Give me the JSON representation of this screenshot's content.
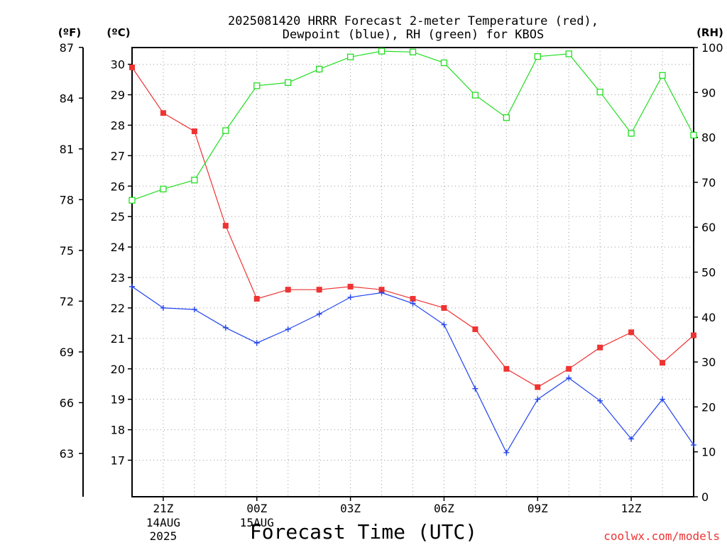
{
  "chart_data": {
    "type": "line",
    "title_line1": "2025081420 HRRR Forecast 2-meter Temperature (red),",
    "title_line2": "Dewpoint (blue), RH (green) for KBOS",
    "xlabel": "Forecast Time (UTC)",
    "credit": "coolwx.com/models",
    "unit_f": "(ºF)",
    "unit_c": "(ºC)",
    "unit_rh": "(RH)",
    "x_hours": [
      20,
      21,
      22,
      23,
      24,
      25,
      26,
      27,
      28,
      29,
      30,
      31,
      32,
      33,
      34,
      35,
      36,
      37,
      38
    ],
    "x_ticks": [
      {
        "hour": 21,
        "label": "21Z",
        "sub1": "14AUG",
        "sub2": "2025"
      },
      {
        "hour": 24,
        "label": "00Z",
        "sub1": "15AUG",
        "sub2": ""
      },
      {
        "hour": 27,
        "label": "03Z",
        "sub1": "",
        "sub2": ""
      },
      {
        "hour": 30,
        "label": "06Z",
        "sub1": "",
        "sub2": ""
      },
      {
        "hour": 33,
        "label": "09Z",
        "sub1": "",
        "sub2": ""
      },
      {
        "hour": 36,
        "label": "12Z",
        "sub1": "",
        "sub2": ""
      }
    ],
    "xlim": [
      20,
      38
    ],
    "ylim_c": [
      15.8,
      30.55
    ],
    "ylim_rh": [
      0,
      100
    ],
    "ticks_c": [
      17,
      18,
      19,
      20,
      21,
      22,
      23,
      24,
      25,
      26,
      27,
      28,
      29,
      30
    ],
    "ticks_f": [
      63,
      66,
      69,
      72,
      75,
      78,
      81,
      84,
      87
    ],
    "ticks_rh": [
      0,
      10,
      20,
      30,
      40,
      50,
      60,
      70,
      80,
      90,
      100
    ],
    "grid": true,
    "series": [
      {
        "key": "temperature",
        "color": "#ee3333",
        "marker": "filled-square",
        "axis": "C",
        "values": [
          29.9,
          28.4,
          27.8,
          24.7,
          22.3,
          22.6,
          22.6,
          22.7,
          22.6,
          22.3,
          22.0,
          21.3,
          20.0,
          19.4,
          20.0,
          20.7,
          21.2,
          20.2,
          21.1
        ]
      },
      {
        "key": "dewpoint",
        "color": "#2244ee",
        "marker": "plus",
        "axis": "C",
        "values": [
          22.7,
          22.0,
          21.95,
          21.35,
          20.85,
          21.3,
          21.8,
          22.35,
          22.5,
          22.15,
          21.45,
          19.35,
          17.25,
          19.0,
          19.7,
          18.95,
          17.7,
          19.0,
          17.5
        ]
      },
      {
        "key": "rh",
        "color": "#22dd22",
        "marker": "open-square",
        "axis": "RH",
        "values": [
          66,
          68.5,
          70.5,
          81.5,
          91.5,
          92.2,
          95.2,
          97.9,
          99.2,
          99.0,
          96.6,
          89.4,
          84.4,
          98.0,
          98.6,
          90.1,
          80.9,
          93.8,
          80.5
        ]
      }
    ]
  }
}
